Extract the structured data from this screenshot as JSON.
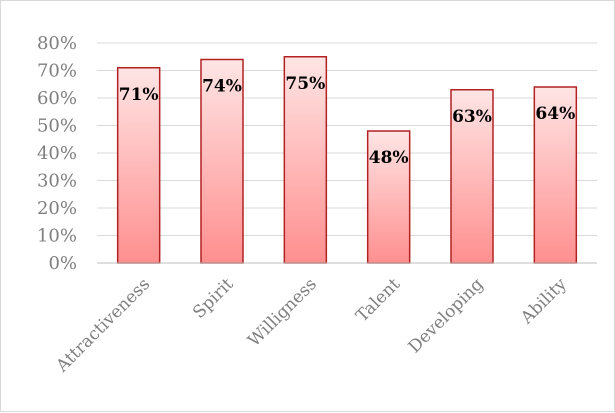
{
  "chart_data": {
    "type": "bar",
    "title": "",
    "xlabel": "",
    "ylabel": "",
    "categories": [
      "Attractiveness",
      "Spirit",
      "Willigness",
      "Talent",
      "Developing",
      "Ability"
    ],
    "values": [
      0.71,
      0.74,
      0.75,
      0.48,
      0.63,
      0.64
    ],
    "data_labels": [
      "71%",
      "74%",
      "75%",
      "48%",
      "63%",
      "64%"
    ],
    "ylim": [
      0,
      0.8
    ],
    "yticks": [
      0,
      0.1,
      0.2,
      0.3,
      0.4,
      0.5,
      0.6,
      0.7,
      0.8
    ],
    "ytick_labels": [
      "0%",
      "10%",
      "20%",
      "30%",
      "40%",
      "50%",
      "60%",
      "70%",
      "80%"
    ],
    "grid": true,
    "legend": "none",
    "colors": {
      "bar_fill_top": "#ffe5e5",
      "bar_fill_bottom": "#ff8f8f",
      "bar_stroke": "#b22222",
      "grid": "#d9d9d9",
      "axis": "#bfbfbf",
      "tick_text": "#7f7f7f",
      "label_text": "#000000"
    }
  }
}
